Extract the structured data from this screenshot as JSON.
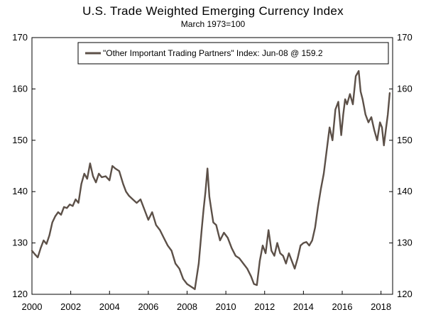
{
  "chart_data": {
    "type": "line",
    "title": "U.S. Trade Weighted Emerging Currency Index",
    "subtitle": "March 1973=100",
    "xlabel": "",
    "ylabel": "",
    "xlim": [
      2000,
      2018.6
    ],
    "ylim": [
      120,
      170
    ],
    "x_ticks": [
      2000,
      2002,
      2004,
      2006,
      2008,
      2010,
      2012,
      2014,
      2016,
      2018
    ],
    "y_ticks": [
      120,
      130,
      140,
      150,
      160,
      170
    ],
    "legend": "top-right",
    "series": [
      {
        "name": "\"Other Important Trading Partners\" Index: Jun-08 @ 159.2",
        "color": "#5c5048",
        "x": [
          2000.0,
          2000.15,
          2000.3,
          2000.45,
          2000.6,
          2000.75,
          2000.9,
          2001.05,
          2001.2,
          2001.35,
          2001.5,
          2001.65,
          2001.8,
          2001.95,
          2002.1,
          2002.25,
          2002.4,
          2002.55,
          2002.7,
          2002.85,
          2003.0,
          2003.15,
          2003.3,
          2003.45,
          2003.6,
          2003.8,
          2004.0,
          2004.15,
          2004.3,
          2004.5,
          2004.7,
          2004.85,
          2005.0,
          2005.2,
          2005.4,
          2005.6,
          2005.8,
          2006.0,
          2006.2,
          2006.4,
          2006.6,
          2006.8,
          2007.0,
          2007.2,
          2007.4,
          2007.6,
          2007.8,
          2008.0,
          2008.2,
          2008.4,
          2008.6,
          2008.75,
          2008.85,
          2008.95,
          2009.05,
          2009.15,
          2009.25,
          2009.35,
          2009.5,
          2009.7,
          2009.9,
          2010.1,
          2010.3,
          2010.5,
          2010.7,
          2010.9,
          2011.1,
          2011.3,
          2011.45,
          2011.6,
          2011.75,
          2011.9,
          2012.05,
          2012.2,
          2012.35,
          2012.5,
          2012.65,
          2012.8,
          2012.95,
          2013.1,
          2013.25,
          2013.4,
          2013.55,
          2013.7,
          2013.85,
          2014.0,
          2014.15,
          2014.3,
          2014.45,
          2014.6,
          2014.75,
          2014.9,
          2015.05,
          2015.2,
          2015.35,
          2015.5,
          2015.65,
          2015.8,
          2015.95,
          2016.05,
          2016.15,
          2016.25,
          2016.4,
          2016.55,
          2016.7,
          2016.85,
          2016.95,
          2017.05,
          2017.2,
          2017.35,
          2017.5,
          2017.65,
          2017.8,
          2017.95,
          2018.05,
          2018.15,
          2018.25,
          2018.35,
          2018.45
        ],
        "values": [
          128.5,
          127.8,
          127.2,
          129.0,
          130.5,
          129.8,
          131.5,
          134.0,
          135.2,
          136.0,
          135.5,
          137.0,
          136.8,
          137.5,
          137.2,
          138.5,
          137.8,
          141.5,
          143.5,
          142.5,
          145.5,
          143.0,
          141.8,
          143.5,
          142.8,
          143.0,
          142.2,
          145.0,
          144.5,
          144.0,
          141.5,
          140.0,
          139.2,
          138.5,
          137.8,
          138.5,
          136.5,
          134.5,
          136.0,
          133.5,
          132.5,
          131.0,
          129.5,
          128.5,
          126.0,
          125.0,
          123.0,
          122.0,
          121.5,
          121.0,
          126.0,
          132.5,
          136.5,
          140.0,
          144.5,
          139.0,
          136.5,
          134.0,
          133.5,
          130.5,
          132.0,
          131.0,
          129.0,
          127.5,
          127.0,
          126.0,
          125.0,
          123.5,
          122.0,
          121.8,
          126.5,
          129.5,
          128.0,
          132.5,
          128.5,
          127.5,
          130.0,
          128.0,
          127.5,
          126.0,
          128.0,
          126.5,
          125.0,
          127.0,
          129.5,
          130.0,
          130.2,
          129.5,
          130.5,
          133.0,
          137.0,
          140.5,
          143.5,
          148.0,
          152.5,
          150.0,
          156.0,
          157.5,
          151.0,
          155.0,
          158.0,
          157.0,
          159.0,
          157.0,
          162.5,
          163.5,
          159.5,
          158.0,
          155.0,
          153.5,
          154.5,
          152.0,
          150.0,
          153.5,
          152.5,
          149.0,
          152.0,
          155.0,
          159.2
        ]
      }
    ]
  }
}
